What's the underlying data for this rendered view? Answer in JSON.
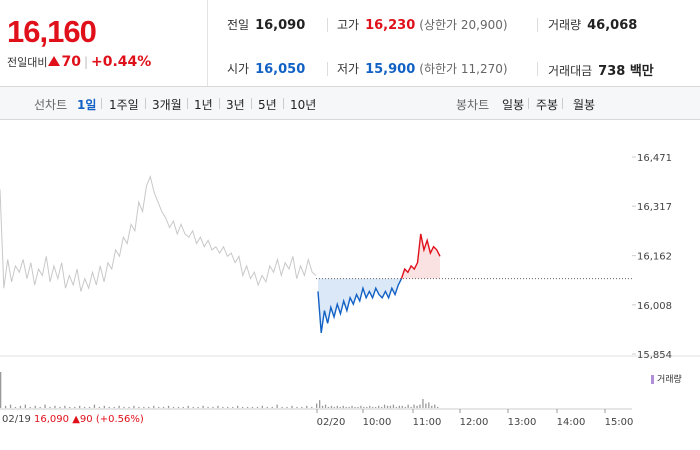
{
  "price": {
    "current": "16,160",
    "change_label": "전일대비",
    "change_abs": "70",
    "change_pct": "+0.44%"
  },
  "stats": {
    "prev_close": {
      "label": "전일",
      "value": "16,090"
    },
    "high": {
      "label": "고가",
      "value": "16,230",
      "sub": "(상한가 20,900)"
    },
    "volume": {
      "label": "거래량",
      "value": "46,068"
    },
    "open": {
      "label": "시가",
      "value": "16,050"
    },
    "low": {
      "label": "저가",
      "value": "15,900",
      "sub": "(하한가 11,270)"
    },
    "amount": {
      "label": "거래대금",
      "value": "738 백만"
    }
  },
  "toolbar": {
    "line_label": "선차트",
    "ranges": [
      "1일",
      "1주일",
      "3개월",
      "1년",
      "3년",
      "5년",
      "10년"
    ],
    "active_range": "1일",
    "candle_label": "봉차트",
    "candles": [
      "일봉",
      "주봉",
      "월봉"
    ]
  },
  "legend": {
    "volume": "거래량"
  },
  "prev_day": {
    "date": "02/19",
    "close": "16,090",
    "change": "90",
    "pct": "(+0.56%)"
  },
  "colors": {
    "up": "#e0101b",
    "down": "#1261c4",
    "prev_day_line": "#c8c8c8"
  },
  "chart_data": {
    "type": "line",
    "y_ticks": [
      "16,471",
      "16,317",
      "16,162",
      "16,008",
      "15,854"
    ],
    "ylim": [
      15854,
      16471
    ],
    "x_ticks": [
      "02/20",
      "10:00",
      "11:00",
      "12:00",
      "13:00",
      "14:00",
      "15:00"
    ],
    "baseline": 16090,
    "series": [
      {
        "values_prev_day": [
          16370,
          16060,
          16150,
          16080,
          16130,
          16110,
          16150,
          16090,
          16140,
          16070,
          16120,
          16100,
          16160,
          16080,
          16130,
          16090,
          16140,
          16060,
          16100,
          16070,
          16120,
          16050,
          16090,
          16060,
          16110,
          16070,
          16130,
          16080,
          16140,
          16120,
          16180,
          16160,
          16220,
          16200,
          16260,
          16240,
          16330,
          16300,
          16380,
          16410,
          16360,
          16330,
          16300,
          16280,
          16250,
          16270,
          16230,
          16260,
          16230,
          16220,
          16240,
          16200,
          16220,
          16190,
          16210,
          16180,
          16190,
          16170,
          16190,
          16160,
          16170,
          16140,
          16160,
          16100,
          16130,
          16090,
          16110,
          16070,
          16100,
          16080,
          16130,
          16110,
          16150,
          16100,
          16140,
          16120,
          16160,
          16090,
          16130,
          16100,
          16150,
          16110,
          16100
        ]
      },
      {
        "values_today": [
          16050,
          15920,
          15990,
          15950,
          16000,
          15970,
          16010,
          15980,
          16020,
          15990,
          16030,
          16010,
          16040,
          16020,
          16060,
          16030,
          16050,
          16030,
          16060,
          16040,
          16030,
          16050,
          16030,
          16060,
          16040,
          16070,
          16090,
          16120,
          16110,
          16130,
          16120,
          16140,
          16230,
          16180,
          16210,
          16170,
          16190,
          16180,
          16160
        ]
      }
    ],
    "volume_bars": [
      32,
      2,
      3,
      1,
      2,
      3,
      1,
      2,
      1,
      3,
      1,
      2,
      1,
      2,
      1,
      1,
      2,
      1,
      1,
      3,
      1,
      2,
      1,
      1,
      2,
      1,
      1,
      2,
      1,
      1,
      1,
      2,
      1,
      1,
      2,
      1,
      1,
      1,
      2,
      1,
      1,
      2,
      1,
      1,
      2,
      1,
      1,
      1,
      2,
      1,
      1,
      1,
      1,
      2,
      1,
      1,
      3,
      1,
      1,
      2,
      1,
      1,
      2,
      1,
      4,
      7,
      2,
      3,
      1,
      2,
      1,
      2,
      1,
      2,
      1,
      1,
      2,
      1,
      1,
      2,
      1,
      1,
      2,
      1,
      1,
      2,
      1,
      3,
      2,
      2,
      3,
      1,
      2,
      2,
      1,
      3,
      1,
      3,
      2,
      3,
      8,
      4,
      5,
      2,
      3,
      1
    ]
  }
}
